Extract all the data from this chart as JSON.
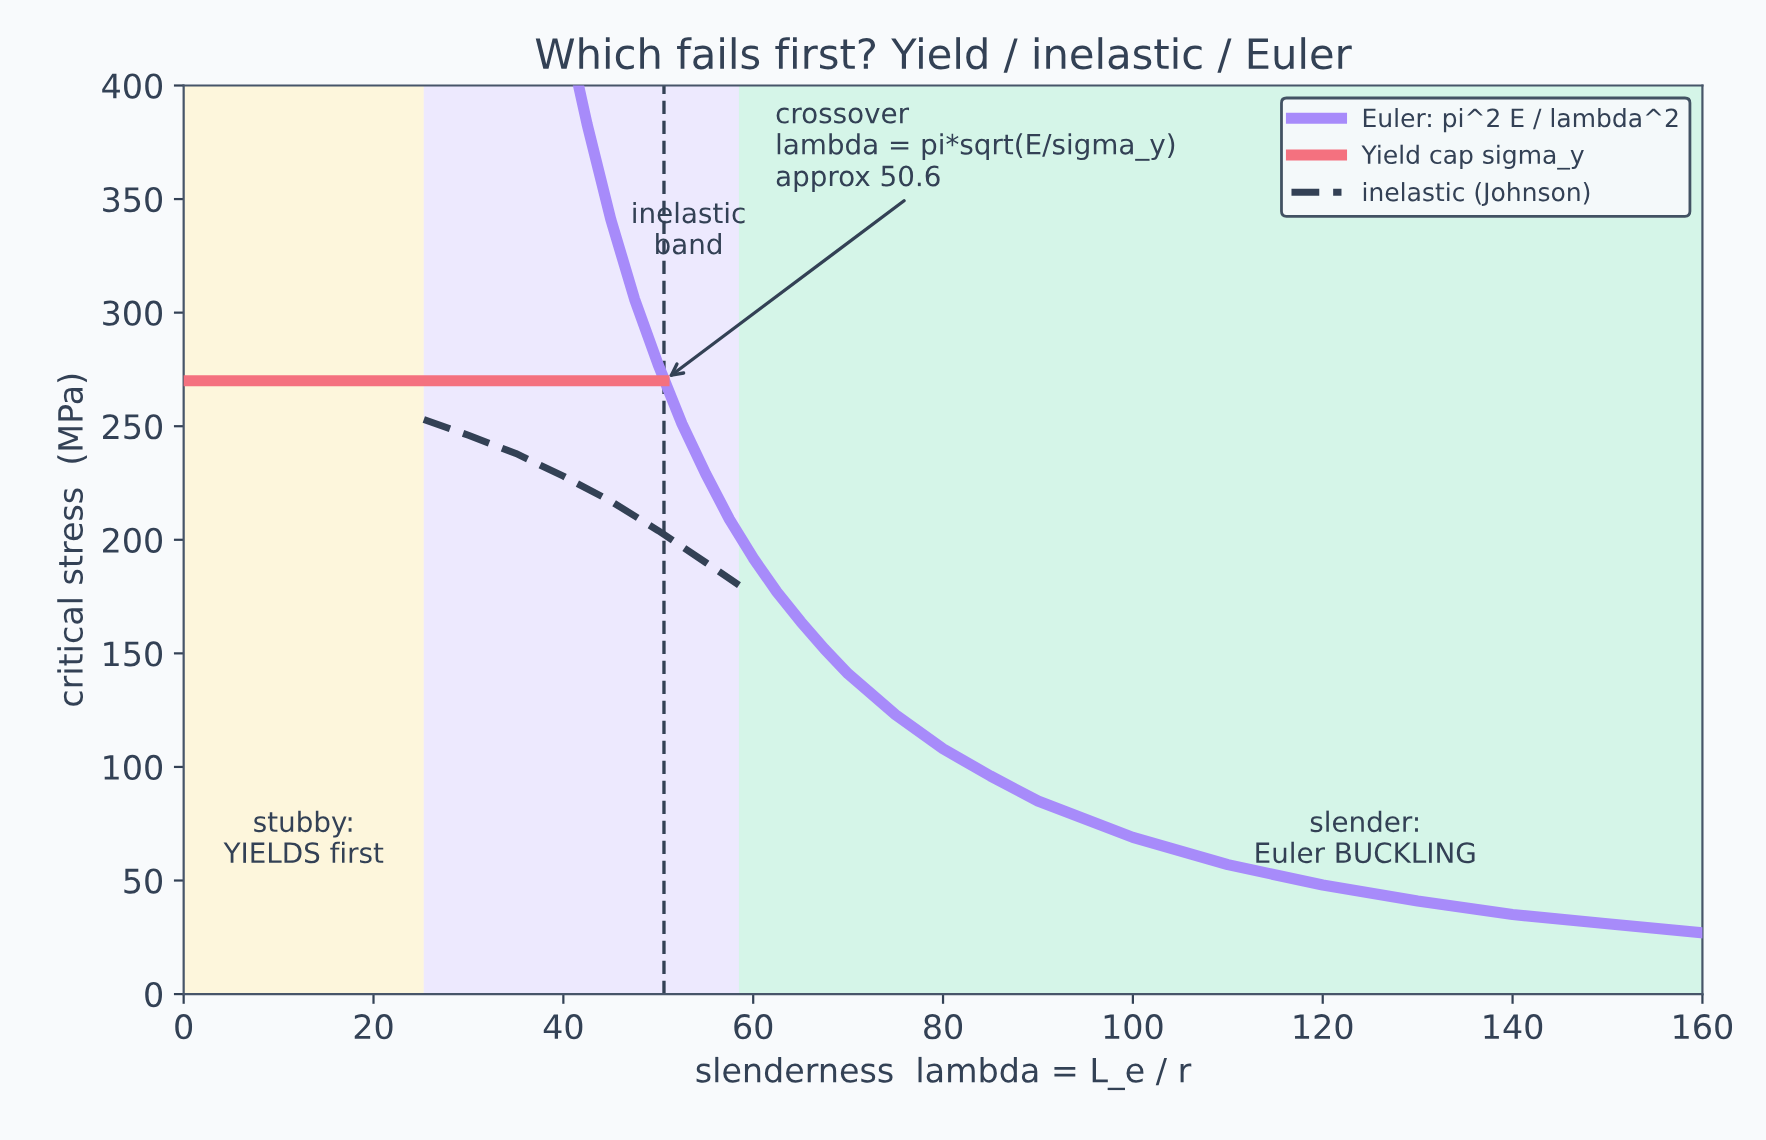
{
  "chart_data": {
    "type": "line",
    "title": "Which fails first? Yield / inelastic / Euler",
    "xlabel": "slenderness  lambda = L_e / r",
    "ylabel": "critical stress  (MPa)",
    "series": [
      {
        "name": "Euler: pi^2 E / lambda^2",
        "color": "#a78bfa",
        "x": [
          41.6,
          42.5,
          45,
          47.5,
          50,
          52.5,
          55,
          57.5,
          60,
          62.5,
          65,
          67.5,
          70,
          75,
          80,
          85,
          90,
          100,
          110,
          120,
          130,
          140,
          150,
          160
        ],
        "values": [
          400,
          383,
          341,
          306,
          277,
          251,
          229,
          209,
          192,
          177,
          164,
          152,
          141,
          123,
          108,
          96,
          85,
          69,
          57,
          48,
          41,
          35,
          31,
          27
        ]
      },
      {
        "name": "Yield cap sigma_y",
        "color": "#f4717f",
        "x": [
          0,
          50.6
        ],
        "values": [
          270,
          270
        ]
      },
      {
        "name": "inelastic (Johnson)",
        "color": "#334155",
        "line_style": "dashed",
        "x": [
          25.3,
          30,
          35,
          40,
          45,
          50,
          55,
          58.5
        ],
        "values": [
          253,
          246,
          238,
          228,
          217,
          204,
          190,
          180
        ]
      }
    ],
    "bands": [
      {
        "axis": "x",
        "from": 0,
        "to": 25.3,
        "color": "#fdf6dc",
        "label": "stubby:\nYIELDS first"
      },
      {
        "axis": "x",
        "from": 25.3,
        "to": 58.5,
        "color": "#ede9fe",
        "label": "inelastic\nband"
      },
      {
        "axis": "x",
        "from": 58.5,
        "to": 160,
        "color": "#d5f5e8",
        "label": "slender:\nEuler BUCKLING"
      }
    ],
    "ref_lines": [
      {
        "axis": "x",
        "value": 50.6,
        "color": "#334155",
        "line_style": "dashed",
        "label": "crossover\nlambda = pi*sqrt(E/sigma_y)\napprox 50.6"
      }
    ],
    "xlim": [
      0,
      160
    ],
    "ylim": [
      0,
      400
    ],
    "xticks": [
      0,
      20,
      40,
      60,
      80,
      100,
      120,
      140,
      160
    ],
    "yticks": [
      0,
      50,
      100,
      150,
      200,
      250,
      300,
      350,
      400
    ],
    "grid": false,
    "legend": "top right"
  }
}
